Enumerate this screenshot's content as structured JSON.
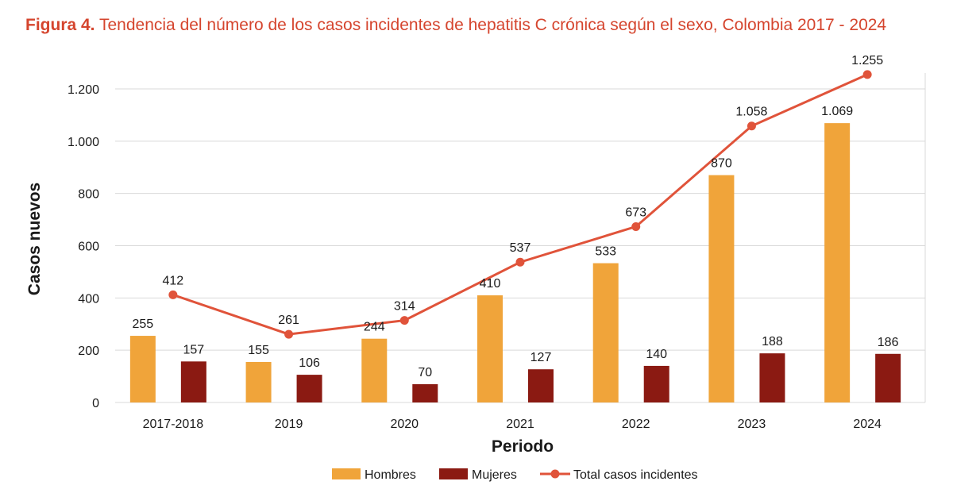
{
  "figure": {
    "label": "Figura 4.",
    "title": "Tendencia del número de los casos incidentes de hepatitis C crónica según el sexo, Colombia 2017 - 2024"
  },
  "colors": {
    "title": "#d5452e",
    "hombres": "#f0a43a",
    "mujeres": "#8b1a12",
    "total": "#e0533a",
    "grid": "#d9d9d9",
    "text": "#1a1a1a"
  },
  "chart_data": {
    "type": "bar",
    "categories": [
      "2017-2018",
      "2019",
      "2020",
      "2021",
      "2022",
      "2023",
      "2024"
    ],
    "series": [
      {
        "name": "Hombres",
        "type": "bar",
        "values": [
          255,
          155,
          244,
          410,
          533,
          870,
          1069
        ],
        "labels": [
          "255",
          "155",
          "244",
          "410",
          "533",
          "870",
          "1.069"
        ]
      },
      {
        "name": "Mujeres",
        "type": "bar",
        "values": [
          157,
          106,
          70,
          127,
          140,
          188,
          186
        ],
        "labels": [
          "157",
          "106",
          "70",
          "127",
          "140",
          "188",
          "186"
        ]
      },
      {
        "name": "Total casos incidentes",
        "type": "line",
        "values": [
          412,
          261,
          314,
          537,
          673,
          1058,
          1255
        ],
        "labels": [
          "412",
          "261",
          "314",
          "537",
          "673",
          "1.058",
          "1.255"
        ]
      }
    ],
    "xlabel": "Periodo",
    "ylabel": "Casos nuevos",
    "ylim": [
      0,
      1200
    ],
    "yticks": [
      0,
      200,
      400,
      600,
      800,
      1000,
      1200
    ],
    "ytick_labels": [
      "0",
      "200",
      "400",
      "600",
      "800",
      "1.000",
      "1.200"
    ],
    "grid": true,
    "legend_position": "bottom"
  }
}
